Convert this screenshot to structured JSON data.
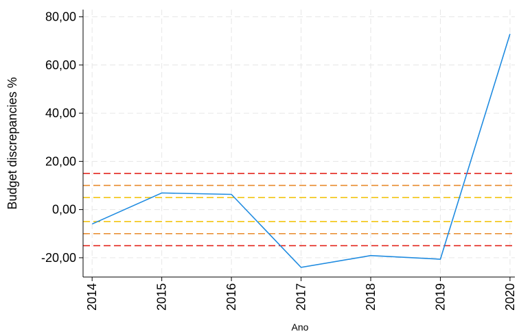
{
  "chart_data": {
    "type": "line",
    "xlabel": "Ano",
    "ylabel": "Budget discrepancies %",
    "x": [
      2014,
      2015,
      2016,
      2017,
      2018,
      2019,
      2020
    ],
    "series": [
      {
        "color": "#1f8be0",
        "values": [
          -6,
          6.9,
          6.3,
          -24,
          -19.1,
          -20.6,
          72.9
        ]
      }
    ],
    "xlim": [
      2013.87,
      2020.07
    ],
    "xticks": [
      2014,
      2015,
      2016,
      2017,
      2018,
      2019,
      2020
    ],
    "ylim": [
      -28,
      83
    ],
    "yticks": [
      {
        "value": -20,
        "label": "-20,00"
      },
      {
        "value": 0,
        "label": "0,00"
      },
      {
        "value": 20,
        "label": "20,00"
      },
      {
        "value": 40,
        "label": "40,00"
      },
      {
        "value": 60,
        "label": "60,00"
      },
      {
        "value": 80,
        "label": "80,00"
      }
    ],
    "grid": true,
    "reference_lines": [
      {
        "value": 15,
        "color": "#e3251d"
      },
      {
        "value": 10,
        "color": "#e8892a"
      },
      {
        "value": 5,
        "color": "#f2c40f"
      },
      {
        "value": -5,
        "color": "#f2c40f"
      },
      {
        "value": -10,
        "color": "#e8892a"
      },
      {
        "value": -15,
        "color": "#e3251d"
      }
    ]
  }
}
